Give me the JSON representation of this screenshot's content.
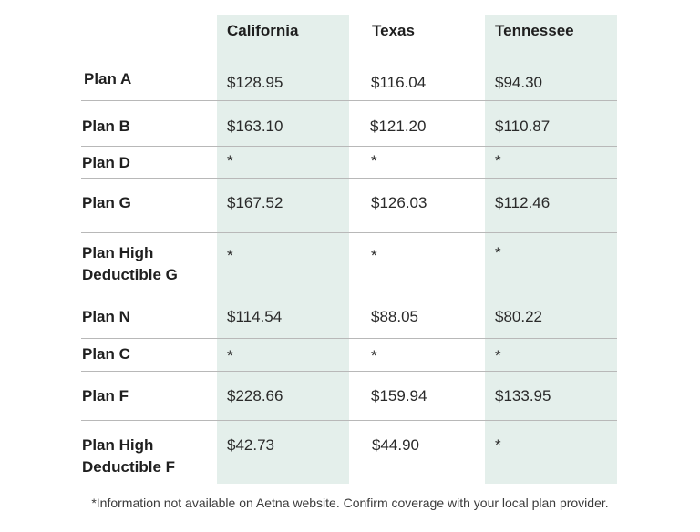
{
  "table": {
    "columns": [
      "California",
      "Texas",
      "Tennessee"
    ],
    "rows": [
      {
        "plan": "Plan A",
        "values": [
          "$128.95",
          "$116.04",
          "$94.30"
        ]
      },
      {
        "plan": "Plan B",
        "values": [
          "$163.10",
          "$121.20",
          "$110.87"
        ]
      },
      {
        "plan": "Plan D",
        "values": [
          "*",
          "*",
          "*"
        ]
      },
      {
        "plan": "Plan G",
        "values": [
          "$167.52",
          "$126.03",
          "$112.46"
        ]
      },
      {
        "plan": "Plan High Deductible G",
        "values": [
          "*",
          "*",
          "*"
        ]
      },
      {
        "plan": "Plan N",
        "values": [
          "$114.54",
          "$88.05",
          "$80.22"
        ]
      },
      {
        "plan": "Plan C",
        "values": [
          "*",
          "*",
          "*"
        ]
      },
      {
        "plan": "Plan F",
        "values": [
          "$228.66",
          "$159.94",
          "$133.95"
        ]
      },
      {
        "plan": "Plan High Deductible F",
        "values": [
          "$42.73",
          "$44.90",
          "*"
        ]
      }
    ]
  },
  "footnote": "*Information not available on Aetna website. Confirm coverage with your local plan provider."
}
